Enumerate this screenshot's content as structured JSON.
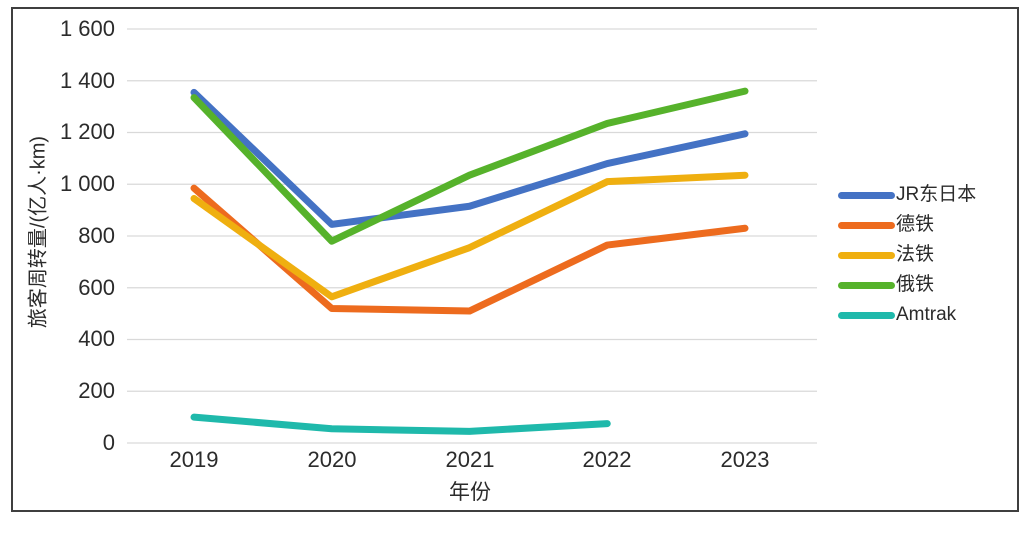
{
  "chart_data": {
    "type": "line",
    "title": "",
    "xlabel": "年份",
    "ylabel": "旅客周转量/(亿人·km)",
    "categories": [
      "2019",
      "2020",
      "2021",
      "2022",
      "2023"
    ],
    "ylim": [
      0,
      1600
    ],
    "ytick_step": 200,
    "ytick_labels": [
      "0",
      "200",
      "400",
      "600",
      "800",
      "1 000",
      "1 200",
      "1 400",
      "1 600"
    ],
    "grid": "horizontal-only",
    "gridline_color": "#d9d9d9",
    "legend_position": "right",
    "frame_color": "#3f3f3f",
    "series": [
      {
        "name": "JR东日本",
        "color": "#4472C4",
        "values": [
          1355,
          845,
          915,
          1080,
          1195
        ]
      },
      {
        "name": "德铁",
        "color": "#ED6B1E",
        "values": [
          985,
          520,
          510,
          765,
          830
        ]
      },
      {
        "name": "法铁",
        "color": "#EFAF10",
        "values": [
          945,
          565,
          755,
          1010,
          1035
        ]
      },
      {
        "name": "俄铁",
        "color": "#56B22B",
        "values": [
          1335,
          780,
          1035,
          1235,
          1360
        ]
      },
      {
        "name": "Amtrak",
        "color": "#1FB9AB",
        "values": [
          100,
          55,
          45,
          75,
          null
        ]
      }
    ]
  }
}
